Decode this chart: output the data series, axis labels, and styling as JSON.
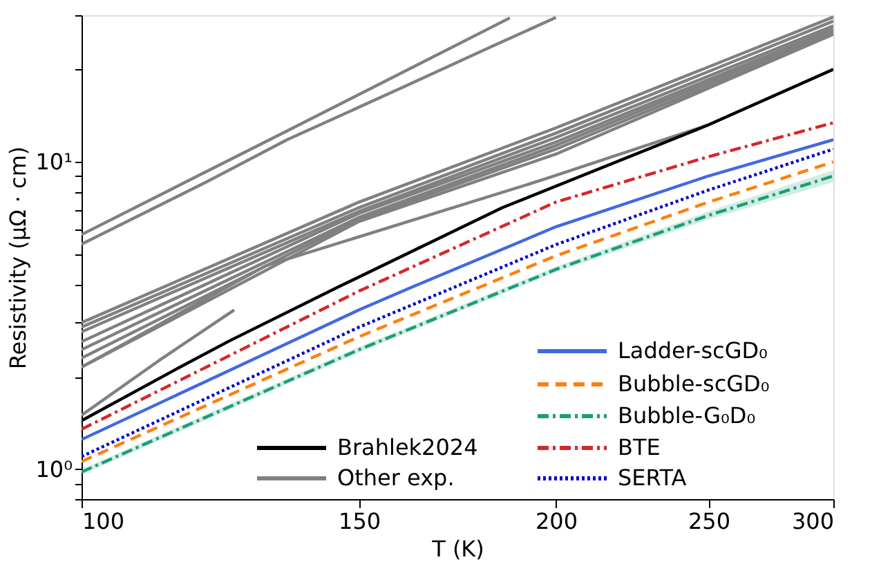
{
  "chart_data": {
    "type": "line",
    "xlabel": "T (K)",
    "ylabel": "Resistivity (μΩ · cm)",
    "log": "xy",
    "grid": false,
    "legend": "bottom right",
    "xlim": [
      100,
      300
    ],
    "xticks": [
      100,
      150,
      200,
      250,
      300
    ],
    "ylim": [
      0.8,
      30
    ],
    "yticks": [
      {
        "value": 0.8,
        "label": null
      },
      {
        "value": 0.9,
        "label": null
      },
      {
        "value": 1,
        "label": "10⁰"
      },
      {
        "value": 2,
        "label": null
      },
      {
        "value": 3,
        "label": null
      },
      {
        "value": 4,
        "label": null
      },
      {
        "value": 5,
        "label": null
      },
      {
        "value": 6,
        "label": null
      },
      {
        "value": 7,
        "label": null
      },
      {
        "value": 8,
        "label": null
      },
      {
        "value": 9,
        "label": null
      },
      {
        "value": 10,
        "label": "10¹"
      },
      {
        "value": 20,
        "label": null
      },
      {
        "value": 30,
        "label": null
      }
    ],
    "series": [
      {
        "name": "Ladder-scGD₀",
        "color": "#4169e1",
        "line_style": "solid",
        "x": [
          100,
          150,
          162,
          200,
          250,
          300
        ],
        "values": [
          1.25,
          3.3,
          3.91,
          6.15,
          9.0,
          11.8
        ]
      },
      {
        "name": "Bubble-scGD₀",
        "color": "#ff7f0e",
        "line_style": "dashed",
        "x": [
          100,
          150,
          200,
          250,
          300
        ],
        "values": [
          1.06,
          2.7,
          4.95,
          7.4,
          10.0
        ]
      },
      {
        "name": "Bubble-G₀D₀",
        "color": "#1b9e77",
        "line_style": "dashdot",
        "x": [
          100,
          150,
          200,
          250,
          300
        ],
        "values": [
          0.98,
          2.45,
          4.47,
          6.7,
          9.0
        ],
        "lower": [
          0.96,
          2.4,
          4.38,
          6.5,
          8.6
        ],
        "upper": [
          1.0,
          2.5,
          4.56,
          6.9,
          9.4
        ]
      },
      {
        "name": "BTE",
        "color": "#d62728",
        "line_style": "dashdot",
        "x": [
          100,
          150,
          200,
          250,
          300
        ],
        "values": [
          1.35,
          3.8,
          7.4,
          10.4,
          13.4
        ]
      },
      {
        "name": "SERTA",
        "color": "#0000cd",
        "line_style": "dotted",
        "x": [
          100,
          150,
          200,
          250,
          300
        ],
        "values": [
          1.1,
          2.9,
          5.38,
          8.1,
          11.0
        ]
      },
      {
        "name": "Brahlek2024",
        "color": "#000000",
        "line_style": "solid",
        "x": [
          100,
          114.5,
          124,
          146,
          185,
          250,
          300
        ],
        "values": [
          1.44,
          2.1,
          2.61,
          3.95,
          7.1,
          13.2,
          20.0
        ]
      },
      {
        "name": "Other exp.",
        "color": "#808080",
        "line_style": "solid",
        "x": [
          100,
          120,
          135,
          160,
          187
        ],
        "values": [
          5.8,
          9.3,
          12.6,
          19.6,
          29.4
        ]
      },
      {
        "color": "#808080",
        "line_style": "solid",
        "x": [
          100,
          120,
          135,
          160,
          183,
          200
        ],
        "values": [
          5.4,
          8.6,
          11.8,
          17.5,
          24.0,
          29.5
        ]
      },
      {
        "color": "#808080",
        "line_style": "solid",
        "x": [
          100,
          150,
          200,
          300
        ],
        "values": [
          3.0,
          7.4,
          12.9,
          29.6
        ]
      },
      {
        "color": "#808080",
        "line_style": "solid",
        "x": [
          100,
          150,
          200,
          300
        ],
        "values": [
          2.9,
          7.1,
          12.4,
          28.7
        ]
      },
      {
        "color": "#808080",
        "line_style": "solid",
        "x": [
          100,
          150,
          200,
          300
        ],
        "values": [
          2.8,
          6.9,
          12.0,
          27.7
        ]
      },
      {
        "color": "#808080",
        "line_style": "solid",
        "x": [
          100,
          150,
          200,
          300
        ],
        "values": [
          2.6,
          6.8,
          11.6,
          27.1
        ]
      },
      {
        "color": "#808080",
        "line_style": "solid",
        "x": [
          100,
          150,
          200,
          300
        ],
        "values": [
          2.45,
          6.6,
          11.3,
          26.6
        ]
      },
      {
        "color": "#808080",
        "line_style": "solid",
        "x": [
          100,
          150,
          200,
          300
        ],
        "values": [
          2.3,
          6.5,
          11.0,
          26.1
        ]
      },
      {
        "color": "#808080",
        "line_style": "solid",
        "x": [
          100,
          150,
          200,
          300
        ],
        "values": [
          2.15,
          6.4,
          10.6,
          26.0
        ]
      },
      {
        "color": "#808080",
        "line_style": "solid",
        "x": [
          100,
          131,
          195,
          250
        ],
        "values": [
          2.15,
          4.6,
          8.66,
          13.2
        ]
      },
      {
        "color": "#808080",
        "line_style": "solid",
        "x": [
          100,
          112,
          125
        ],
        "values": [
          1.5,
          2.26,
          3.3
        ]
      }
    ]
  }
}
